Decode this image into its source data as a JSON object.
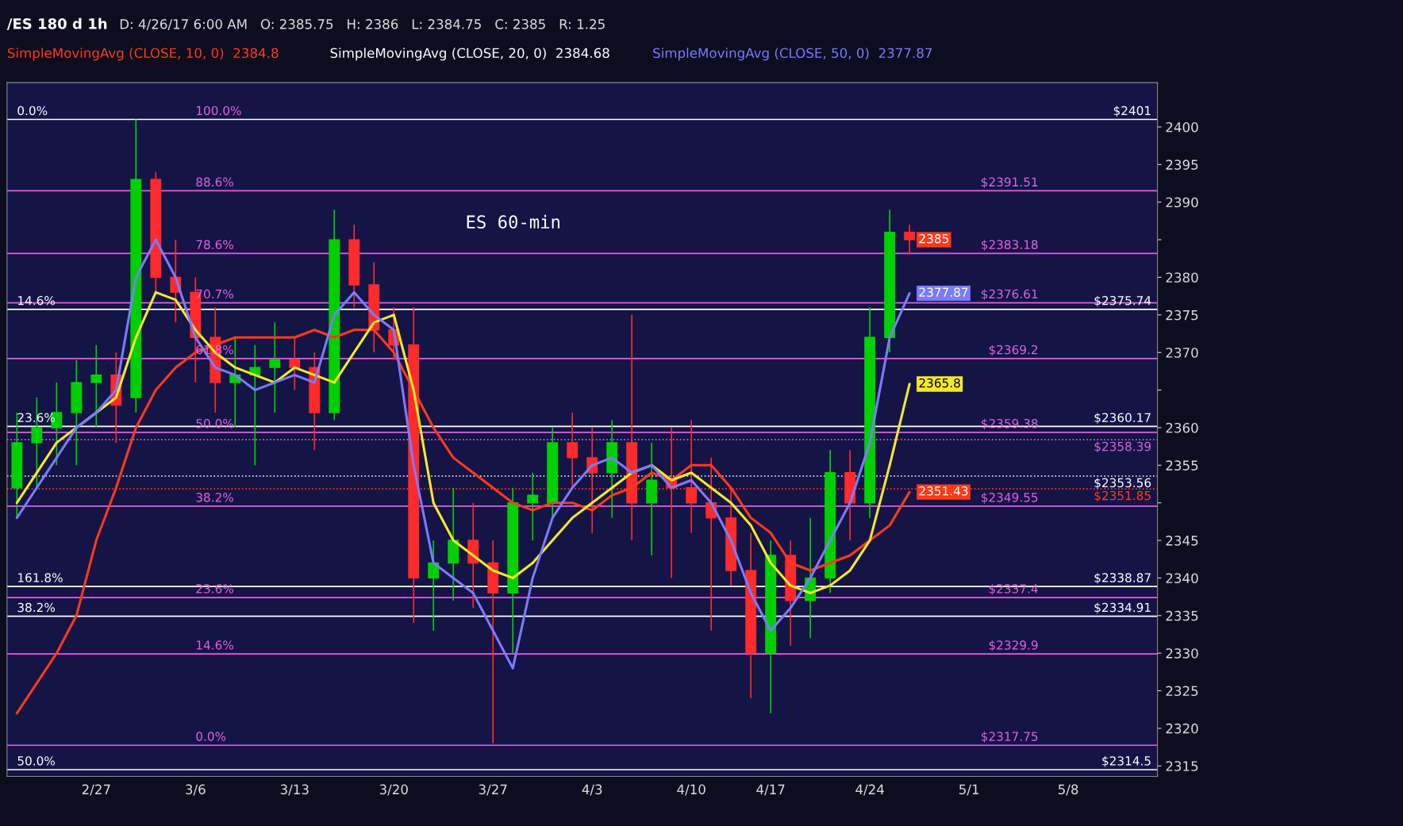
{
  "chart_data": {
    "type": "candlestick",
    "title": "/ES 180 d 1h",
    "subtitle": "D: 4/26/17 6:00 AM   O: 2385.75   H: 2386   L: 2384.75   C: 2385   R: 1.25",
    "categories": [
      null,
      null,
      null,
      null,
      "2/27",
      null,
      null,
      null,
      null,
      "3/6",
      null,
      null,
      null,
      null,
      "3/13",
      null,
      null,
      null,
      null,
      "3/20",
      null,
      null,
      null,
      null,
      "3/27",
      null,
      null,
      null,
      null,
      "4/3",
      null,
      null,
      null,
      null,
      "4/10",
      null,
      null,
      null,
      "4/17",
      null,
      null,
      null,
      null,
      "4/24",
      null,
      null,
      null,
      null,
      "5/1",
      null,
      null,
      null,
      null,
      "5/8",
      null,
      null,
      null,
      null
    ],
    "ohlc": [
      [
        2352,
        2362,
        2348,
        2358
      ],
      [
        2358,
        2364,
        2352,
        2360
      ],
      [
        2360,
        2366,
        2355,
        2362
      ],
      [
        2362,
        2369,
        2355,
        2366
      ],
      [
        2366,
        2371,
        2360,
        2367
      ],
      [
        2367,
        2370,
        2358,
        2363
      ],
      [
        2364,
        2401,
        2362,
        2393
      ],
      [
        2393,
        2394,
        2378,
        2380
      ],
      [
        2380,
        2385,
        2374,
        2378
      ],
      [
        2378,
        2380,
        2366,
        2372
      ],
      [
        2372,
        2376,
        2362,
        2366
      ],
      [
        2366,
        2372,
        2360,
        2367
      ],
      [
        2367,
        2371,
        2355,
        2368
      ],
      [
        2368,
        2374,
        2362,
        2369
      ],
      [
        2369,
        2372,
        2365,
        2368
      ],
      [
        2368,
        2370,
        2357,
        2362
      ],
      [
        2362,
        2389,
        2361,
        2385
      ],
      [
        2385,
        2387,
        2376,
        2379
      ],
      [
        2379,
        2382,
        2370,
        2373
      ],
      [
        2373,
        2376,
        2369,
        2371
      ],
      [
        2371,
        2376,
        2334,
        2340
      ],
      [
        2340,
        2345,
        2333,
        2342
      ],
      [
        2342,
        2352,
        2337,
        2345
      ],
      [
        2345,
        2350,
        2336,
        2342
      ],
      [
        2342,
        2345,
        2318,
        2338
      ],
      [
        2338,
        2352,
        2330,
        2350
      ],
      [
        2350,
        2354,
        2345,
        2351
      ],
      [
        2350,
        2360,
        2348,
        2358
      ],
      [
        2358,
        2362,
        2352,
        2356
      ],
      [
        2356,
        2360,
        2346,
        2354
      ],
      [
        2354,
        2361,
        2348,
        2358
      ],
      [
        2358,
        2375,
        2345,
        2350
      ],
      [
        2350,
        2358,
        2343,
        2353
      ],
      [
        2353,
        2360,
        2340,
        2352
      ],
      [
        2352,
        2361,
        2346,
        2350
      ],
      [
        2350,
        2356,
        2333,
        2348
      ],
      [
        2348,
        2352,
        2339,
        2341
      ],
      [
        2341,
        2346,
        2324,
        2330
      ],
      [
        2330,
        2345,
        2322,
        2343
      ],
      [
        2343,
        2345,
        2331,
        2337
      ],
      [
        2337,
        2348,
        2332,
        2340
      ],
      [
        2340,
        2357,
        2338,
        2354
      ],
      [
        2354,
        2357,
        2345,
        2350
      ],
      [
        2350,
        2376,
        2348,
        2372
      ],
      [
        2372,
        2389,
        2370,
        2386
      ],
      [
        2386,
        2387,
        2383,
        2385
      ],
      null,
      null,
      null,
      null,
      null,
      null,
      null,
      null,
      null,
      null,
      null,
      null
    ],
    "colors": [
      "#00d000",
      "#00d000",
      "#00d000",
      "#00d000",
      "#00d000",
      "#ff2a2a",
      "#00d000",
      "#ff2a2a",
      "#ff2a2a",
      "#ff2a2a",
      "#ff2a2a",
      "#00d000",
      "#00d000",
      "#00d000",
      "#ff2a2a",
      "#ff2a2a",
      "#00d000",
      "#ff2a2a",
      "#ff2a2a",
      "#ff2a2a",
      "#ff2a2a",
      "#00d000",
      "#00d000",
      "#ff2a2a",
      "#ff2a2a",
      "#00d000",
      "#00d000",
      "#00d000",
      "#ff2a2a",
      "#ff2a2a",
      "#00d000",
      "#ff2a2a",
      "#00d000",
      "#ff2a2a",
      "#ff2a2a",
      "#ff2a2a",
      "#ff2a2a",
      "#ff2a2a",
      "#00d000",
      "#ff2a2a",
      "#00d000",
      "#00d000",
      "#ff2a2a",
      "#00d000",
      "#00d000",
      "#ff2a2a",
      null,
      null,
      null,
      null,
      null,
      null,
      null,
      null,
      null,
      null,
      null,
      null
    ],
    "series": [
      {
        "type": "line",
        "color": "#ff3a1a",
        "value_labels": [
          null,
          null,
          null,
          null,
          null,
          null,
          null,
          null,
          null,
          null,
          null,
          null,
          null,
          null,
          null,
          null,
          null,
          null,
          null,
          null,
          null,
          null,
          null,
          null,
          null,
          null,
          null,
          null,
          null,
          null,
          null,
          null,
          null,
          null,
          null,
          null,
          null,
          null,
          null,
          null,
          null,
          null,
          null,
          null,
          null,
          "2351.43",
          null,
          null,
          null,
          null,
          null,
          null,
          null,
          null,
          null,
          null,
          null,
          null
        ],
        "values": [
          2322,
          2326,
          2330,
          2335,
          2345,
          2352,
          2360,
          2365,
          2368,
          2370,
          2371,
          2372,
          2372,
          2372,
          2372,
          2373,
          2372,
          2373,
          2373,
          2370,
          2365,
          2360,
          2356,
          2354,
          2352,
          2350,
          2349,
          2350,
          2350,
          2349,
          2351,
          2352,
          2354,
          2353,
          2355,
          2355,
          2352,
          2348,
          2346,
          2342,
          2341,
          2342,
          2343,
          2345,
          2347,
          2351.43,
          null,
          null,
          null,
          null,
          null,
          null,
          null,
          null,
          null,
          null,
          null,
          null
        ]
      },
      {
        "type": "line",
        "color": "#f5ea2a",
        "value_labels": [
          null,
          null,
          null,
          null,
          null,
          null,
          null,
          null,
          null,
          null,
          null,
          null,
          null,
          null,
          null,
          null,
          null,
          null,
          null,
          null,
          null,
          null,
          null,
          null,
          null,
          null,
          null,
          null,
          null,
          null,
          null,
          null,
          null,
          null,
          null,
          null,
          null,
          null,
          null,
          null,
          null,
          null,
          null,
          null,
          null,
          "2365.8",
          null,
          null,
          null,
          null,
          null,
          null,
          null,
          null,
          null,
          null,
          null,
          null
        ],
        "values": [
          2350,
          2354,
          2358,
          2360,
          2362,
          2364,
          2372,
          2378,
          2377,
          2373,
          2370,
          2368,
          2367,
          2366,
          2368,
          2367,
          2366,
          2370,
          2374,
          2375,
          2365,
          2350,
          2345,
          2343,
          2341,
          2340,
          2342,
          2345,
          2348,
          2350,
          2352,
          2354,
          2355,
          2353,
          2354,
          2352,
          2350,
          2347,
          2342,
          2339,
          2338,
          2339,
          2341,
          2345,
          2355,
          2365.8,
          null,
          null,
          null,
          null,
          null,
          null,
          null,
          null,
          null,
          null,
          null,
          null
        ]
      },
      {
        "type": "line",
        "color": "#7b7bff",
        "value_labels": [
          null,
          null,
          null,
          null,
          null,
          null,
          null,
          null,
          null,
          null,
          null,
          null,
          null,
          null,
          null,
          null,
          null,
          null,
          null,
          null,
          null,
          null,
          null,
          null,
          null,
          null,
          null,
          null,
          null,
          null,
          null,
          null,
          null,
          null,
          null,
          null,
          null,
          null,
          null,
          null,
          null,
          null,
          null,
          null,
          null,
          "2377.87",
          null,
          null,
          null,
          null,
          null,
          null,
          null,
          null,
          null,
          null,
          null,
          null
        ],
        "values": [
          2348,
          2352,
          2356,
          2360,
          2362,
          2365,
          2380,
          2385,
          2380,
          2372,
          2368,
          2367,
          2365,
          2366,
          2367,
          2366,
          2375,
          2378,
          2375,
          2373,
          2355,
          2342,
          2340,
          2338,
          2333,
          2328,
          2340,
          2348,
          2352,
          2355,
          2356,
          2354,
          2355,
          2352,
          2353,
          2350,
          2345,
          2338,
          2333,
          2336,
          2340,
          2345,
          2350,
          2358,
          2372,
          2377.87,
          null,
          null,
          null,
          null,
          null,
          null,
          null,
          null,
          null,
          null,
          null,
          null
        ]
      }
    ],
    "value_labels": [
      null,
      null,
      null,
      null,
      null,
      null,
      null,
      null,
      null,
      null,
      null,
      null,
      null,
      null,
      null,
      null,
      null,
      null,
      null,
      null,
      null,
      null,
      null,
      null,
      null,
      null,
      null,
      null,
      null,
      null,
      null,
      null,
      null,
      null,
      null,
      null,
      null,
      null,
      null,
      null,
      null,
      null,
      null,
      null,
      null,
      "2385",
      null,
      null,
      null,
      null,
      null,
      null,
      null,
      null,
      null,
      null,
      null,
      null
    ],
    "ylim": [
      2313.6,
      2405.9
    ],
    "yticks": [
      2315,
      2320,
      2325,
      2330,
      2335,
      2340,
      2345,
      {
        "value": 2350,
        "label": null
      },
      2355,
      2360,
      {
        "value": 2365,
        "label": null
      },
      2370,
      2375,
      2380,
      {
        "value": 2385,
        "label": null
      },
      2390,
      2395,
      2400
    ],
    "grid": false,
    "ref_lines": [
      {
        "axis": "y",
        "value": 2401,
        "label": "$2401",
        "color": "#ffffff",
        "line_style": "solid"
      },
      {
        "axis": "y",
        "value": 2391.51,
        "label": "$2391.51",
        "color": "#e060e0",
        "line_style": "solid"
      },
      {
        "axis": "y",
        "value": 2383.18,
        "label": "$2383.18",
        "color": "#e060e0",
        "line_style": "solid"
      },
      {
        "axis": "y",
        "value": 2376.61,
        "label": "$2376.61",
        "color": "#e060e0",
        "line_style": "solid"
      },
      {
        "axis": "y",
        "value": 2375.74,
        "label": "$2375.74",
        "color": "#ffffff",
        "line_style": "solid"
      },
      {
        "axis": "y",
        "value": 2369.2,
        "label": "$2369.2",
        "color": "#e060e0",
        "line_style": "solid"
      },
      {
        "axis": "y",
        "value": 2360.17,
        "label": "$2360.17",
        "color": "#ffffff",
        "line_style": "solid"
      },
      {
        "axis": "y",
        "value": 2359.38,
        "label": "$2359.38",
        "color": "#e060e0",
        "line_style": "solid"
      },
      {
        "axis": "y",
        "value": 2358.39,
        "label": "$2358.39",
        "color": "#e060e0",
        "line_style": "dotted"
      },
      {
        "axis": "y",
        "value": 2353.56,
        "label": "$2353.56",
        "color": "#ffffff",
        "line_style": "dotted"
      },
      {
        "axis": "y",
        "value": 2351.85,
        "label": "$2351.85",
        "color": "#ff3a1a",
        "line_style": "dotted"
      },
      {
        "axis": "y",
        "value": 2349.55,
        "label": "$2349.55",
        "color": "#e060e0",
        "line_style": "solid"
      },
      {
        "axis": "y",
        "value": 2338.87,
        "label": "$2338.87",
        "color": "#ffffff",
        "line_style": "solid"
      },
      {
        "axis": "y",
        "value": 2337.4,
        "label": "$2337.4",
        "color": "#e060e0",
        "line_style": "solid"
      },
      {
        "axis": "y",
        "value": 2334.91,
        "label": "$2334.91",
        "color": "#ffffff",
        "line_style": "solid"
      },
      {
        "axis": "y",
        "value": 2329.9,
        "label": "$2329.9",
        "color": "#e060e0",
        "line_style": "solid"
      },
      {
        "axis": "y",
        "value": 2317.75,
        "label": "$2317.75",
        "color": "#e060e0",
        "line_style": "solid"
      },
      {
        "axis": "y",
        "value": 2314.5,
        "label": "$2314.5",
        "color": "#ffffff",
        "line_style": "solid"
      }
    ],
    "annotations": [
      "SimpleMovingAvg (CLOSE, 10, 0)  2384.8",
      "SimpleMovingAvg (CLOSE, 20, 0)  2384.68",
      "SimpleMovingAvg (CLOSE, 50, 0)  2377.87",
      "ES 60-min",
      {
        "text": "100.0%",
        "y": 2401
      },
      {
        "text": "88.6%",
        "y": 2391.51
      },
      {
        "text": "78.6%",
        "y": 2383.18
      },
      {
        "text": "70.7%",
        "y": 2376.61
      },
      {
        "text": "61.8%",
        "y": 2369.2
      },
      {
        "text": "50.0%",
        "y": 2359.38
      },
      {
        "text": "38.2%",
        "y": 2349.55
      },
      {
        "text": "23.6%",
        "y": 2337.4
      },
      {
        "text": "14.6%",
        "y": 2329.9
      },
      {
        "text": "0.0%",
        "y": 2317.75
      },
      {
        "text": "0.0%",
        "y": 2401
      },
      {
        "text": "14.6%",
        "y": 2375.74
      },
      {
        "text": "23.6%",
        "y": 2360.17
      },
      {
        "text": "161.8%",
        "y": 2338.87
      },
      {
        "text": "38.2%",
        "y": 2334.91
      },
      {
        "text": "50.0%",
        "y": 2314.5
      }
    ]
  }
}
